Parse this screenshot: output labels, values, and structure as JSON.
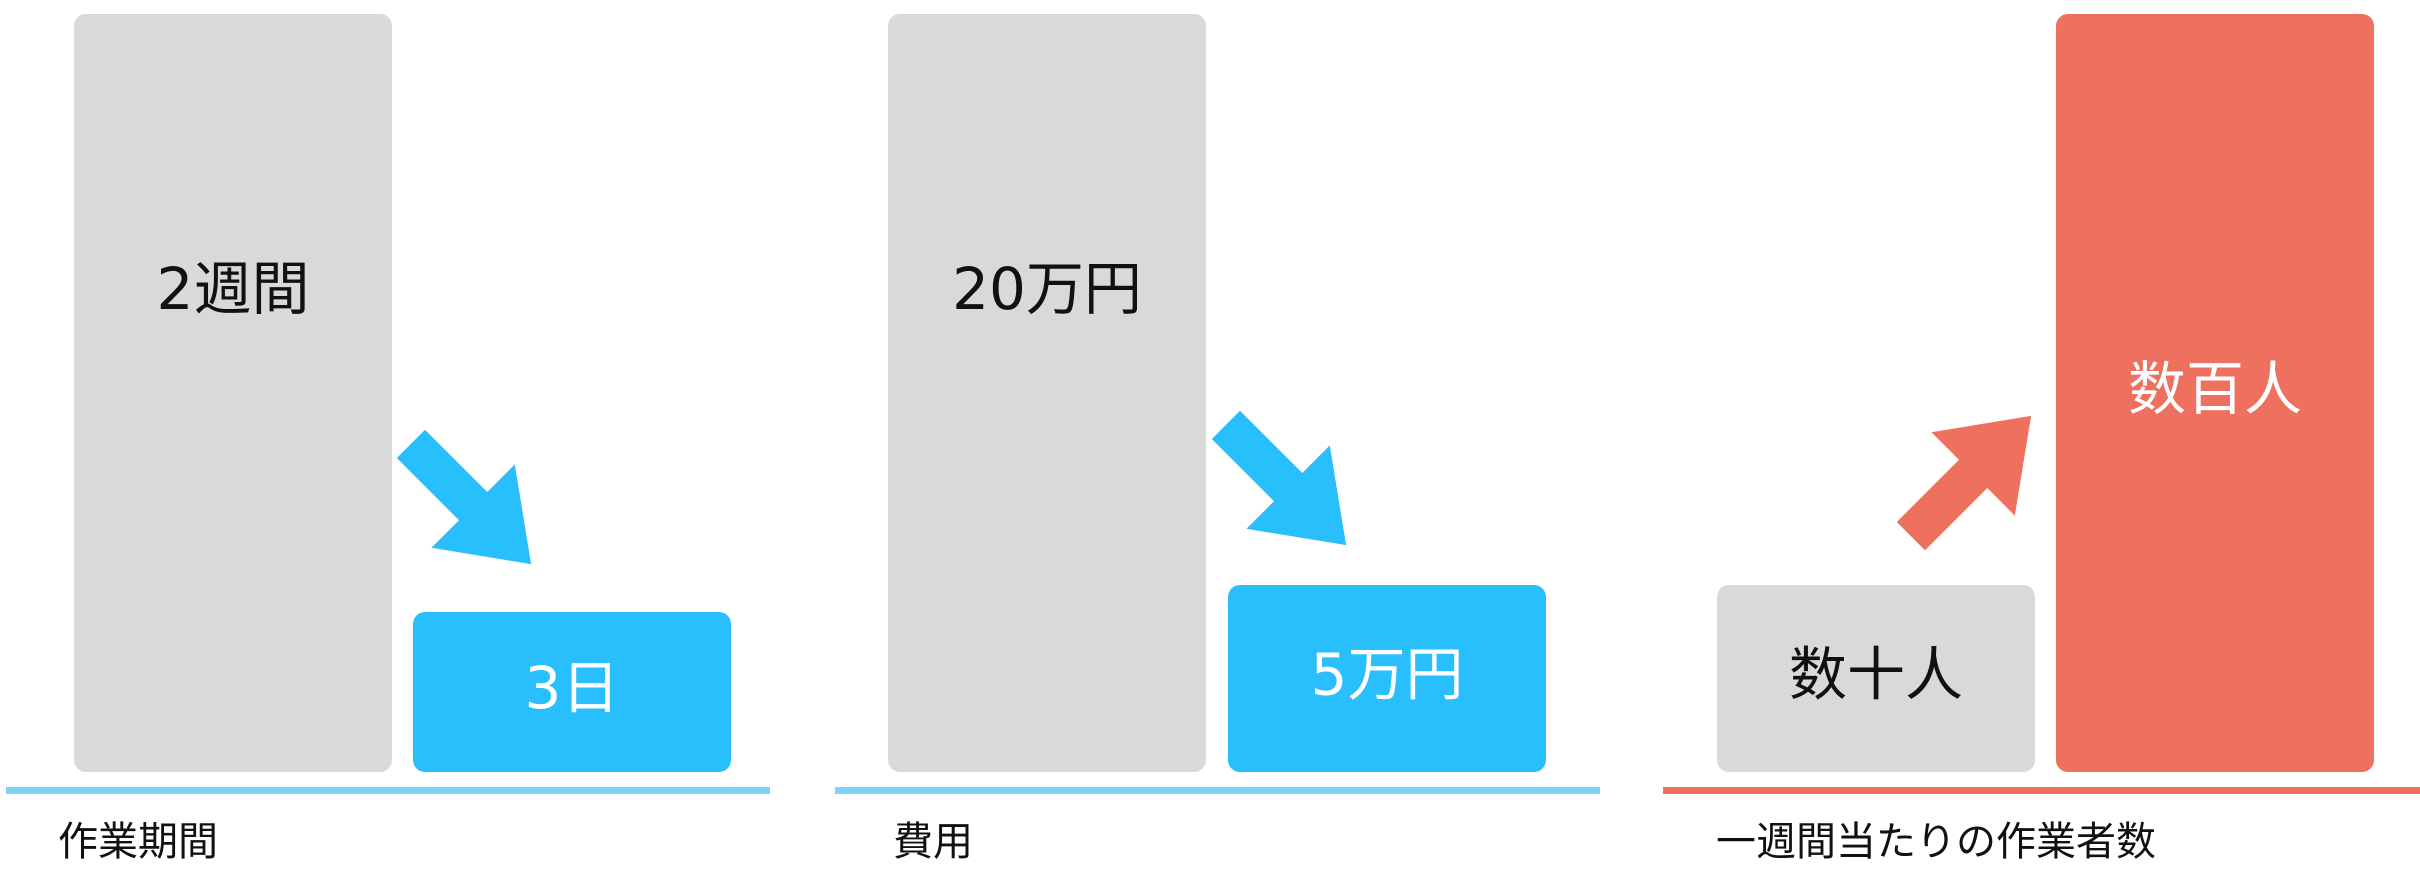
{
  "chart_data": [
    {
      "type": "bar",
      "categories": [
        "2週間",
        "3日"
      ],
      "series": [
        {
          "values": [
            2,
            0.43
          ]
        }
      ],
      "value_unit": "週",
      "xlabel": "作業期間",
      "bar_colors": [
        "#d9d9d9",
        "#29bffd"
      ],
      "label_colors": [
        "#111111",
        "#ffffff"
      ],
      "baseline_color": "#7dd4f6",
      "arrow": {
        "direction": "down",
        "color": "#29bffd"
      }
    },
    {
      "type": "bar",
      "categories": [
        "20万円",
        "5万円"
      ],
      "series": [
        {
          "values": [
            200000,
            50000
          ]
        }
      ],
      "value_unit": "円",
      "xlabel": "費用",
      "bar_colors": [
        "#d9d9d9",
        "#29bffd"
      ],
      "label_colors": [
        "#111111",
        "#ffffff"
      ],
      "baseline_color": "#7dd4f6",
      "arrow": {
        "direction": "down",
        "color": "#29bffd"
      }
    },
    {
      "type": "bar",
      "categories": [
        "数十人",
        "数百人"
      ],
      "series": [
        {
          "values": [
            25,
            150
          ]
        }
      ],
      "value_unit": "人",
      "xlabel": "一週間当たりの作業者数",
      "bar_colors": [
        "#d9d9d9",
        "#ee705f"
      ],
      "label_colors": [
        "#111111",
        "#ffffff"
      ],
      "baseline_color": "#ee705f",
      "arrow": {
        "direction": "up",
        "color": "#ee705f"
      }
    }
  ]
}
